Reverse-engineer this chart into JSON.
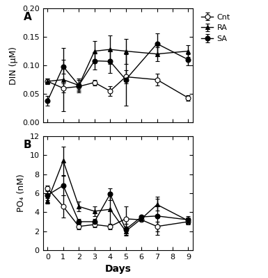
{
  "days": [
    0,
    1,
    2,
    3,
    4,
    5,
    6,
    7,
    8,
    9
  ],
  "DIN_Cnt_y": [
    0.072,
    0.06,
    0.063,
    0.07,
    0.055,
    0.08,
    null,
    0.075,
    null,
    0.043
  ],
  "DIN_Cnt_yerr": [
    0.005,
    0.008,
    0.005,
    0.005,
    0.008,
    0.012,
    null,
    0.01,
    null,
    0.005
  ],
  "DIN_RA_y": [
    0.072,
    0.075,
    0.065,
    0.125,
    0.128,
    0.125,
    null,
    0.12,
    null,
    0.125
  ],
  "DIN_RA_yerr": [
    0.005,
    0.055,
    0.012,
    0.018,
    0.025,
    0.022,
    null,
    0.012,
    null,
    0.01
  ],
  "DIN_SA_y": [
    0.038,
    0.098,
    0.065,
    0.108,
    0.107,
    0.075,
    null,
    0.138,
    null,
    0.11
  ],
  "DIN_SA_yerr": [
    0.008,
    0.012,
    0.01,
    0.015,
    0.02,
    0.045,
    null,
    0.018,
    null,
    0.01
  ],
  "PO4_Cnt_y": [
    6.5,
    4.6,
    2.5,
    2.7,
    2.5,
    3.3,
    3.2,
    2.5,
    null,
    3.0
  ],
  "PO4_Cnt_yerr": [
    0.3,
    1.2,
    0.3,
    0.3,
    0.3,
    1.3,
    null,
    0.5,
    null,
    0.3
  ],
  "PO4_RA_y": [
    5.2,
    9.4,
    4.6,
    4.1,
    4.3,
    2.0,
    3.3,
    4.8,
    null,
    3.1
  ],
  "PO4_RA_yerr": [
    0.3,
    1.5,
    0.5,
    0.5,
    1.8,
    0.5,
    null,
    0.6,
    null,
    0.3
  ],
  "PO4_SA_y": [
    5.8,
    6.8,
    3.0,
    3.0,
    5.9,
    2.2,
    3.5,
    3.6,
    null,
    3.2
  ],
  "PO4_SA_yerr": [
    0.5,
    1.0,
    0.3,
    0.3,
    0.6,
    0.6,
    null,
    2.0,
    null,
    0.4
  ],
  "DIN_ylim": [
    0.0,
    0.2
  ],
  "DIN_yticks": [
    0.0,
    0.05,
    0.1,
    0.15,
    0.2
  ],
  "PO4_ylim": [
    0,
    12
  ],
  "PO4_yticks": [
    0,
    2,
    4,
    6,
    8,
    10,
    12
  ],
  "color": "#000000",
  "label_A": "A",
  "label_B": "B",
  "xlabel": "Days",
  "ylabel_A": "DIN (μM)",
  "ylabel_B": "PO₄ (nM)",
  "legend_labels": [
    "Cnt",
    "RA",
    "SA"
  ],
  "background_color": "#ffffff"
}
